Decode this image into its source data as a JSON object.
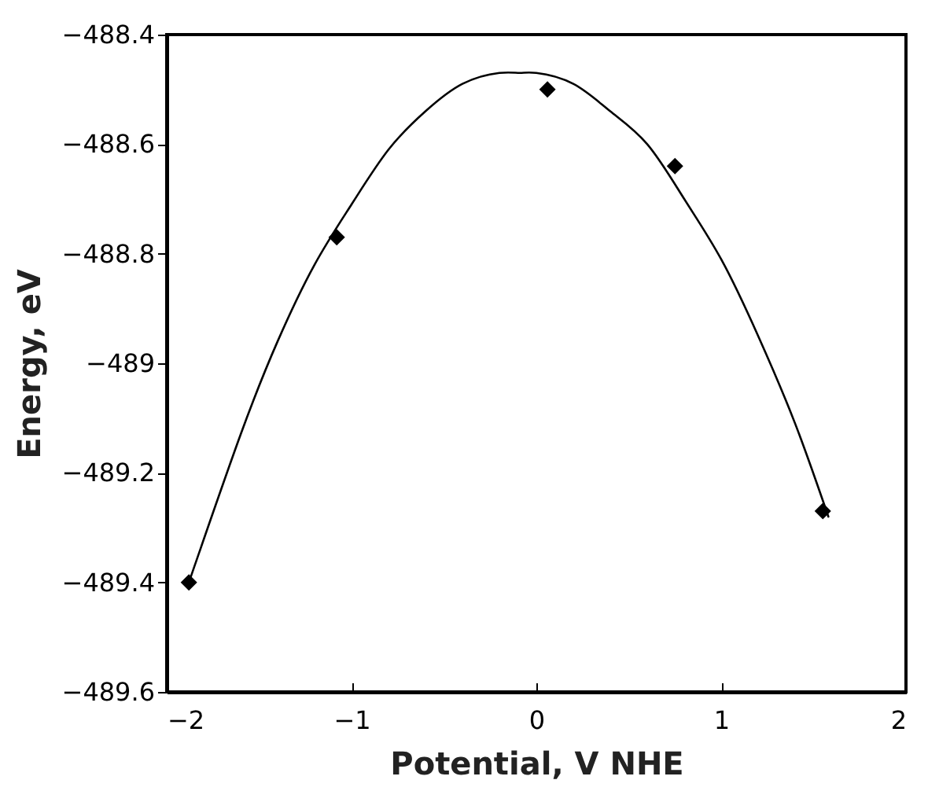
{
  "chart_data": {
    "type": "scatter",
    "xlabel": "Potential, V NHE",
    "ylabel": "Energy, eV",
    "xlim": [
      -2,
      2
    ],
    "xticks": [
      -2,
      -1,
      0,
      1,
      2
    ],
    "ylim": [
      -489.6,
      -488.4
    ],
    "yticks": [
      -489.6,
      -489.4,
      -489.2,
      -489,
      -488.8,
      -488.6,
      -488.4
    ],
    "grid": false,
    "series": [
      {
        "color": "#000000",
        "marker": "diamond",
        "x": [
          -1.88,
          -1.08,
          0.06,
          0.75,
          1.55
        ],
        "values": [
          -489.4,
          -488.77,
          -488.5,
          -488.64,
          -489.27
        ]
      },
      {
        "type": "line",
        "color": "#000000",
        "line_style": "solid",
        "marker": "none",
        "x": [
          -1.88,
          -1.6,
          -1.4,
          -1.2,
          -1.0,
          -0.8,
          -0.6,
          -0.4,
          -0.2,
          -0.09,
          0.0,
          0.2,
          0.4,
          0.6,
          0.8,
          1.0,
          1.2,
          1.4,
          1.58
        ],
        "values": [
          -489.4,
          -489.13,
          -488.96,
          -488.82,
          -488.71,
          -488.61,
          -488.54,
          -488.49,
          -488.47,
          -488.47,
          -488.47,
          -488.49,
          -488.54,
          -488.6,
          -488.7,
          -488.81,
          -488.95,
          -489.11,
          -489.28
        ]
      }
    ]
  }
}
